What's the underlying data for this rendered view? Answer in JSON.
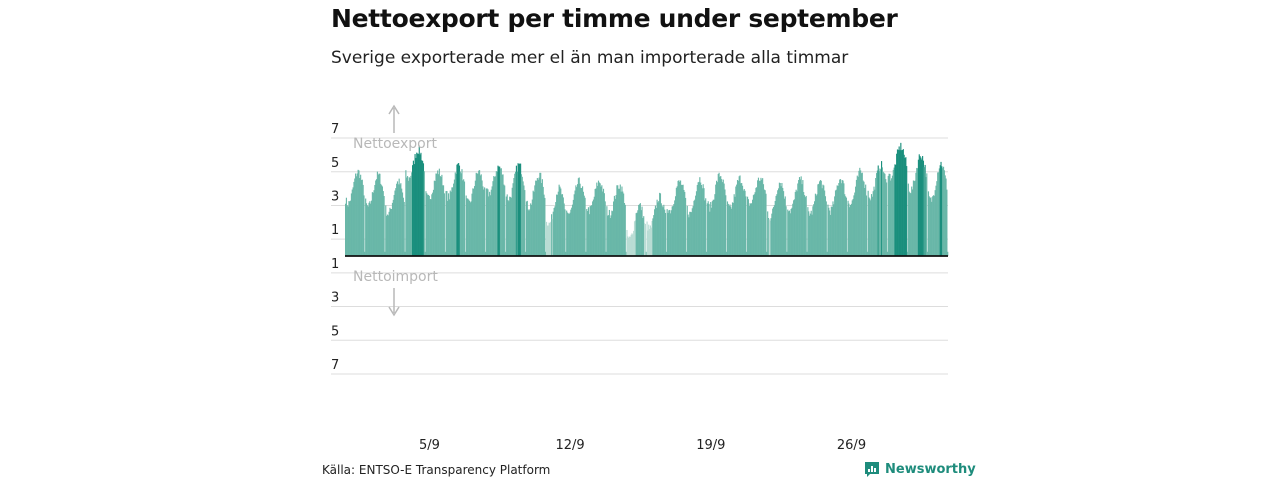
{
  "chart_data": {
    "type": "bar",
    "title": "Nettoexport per timme under september",
    "subtitle": "Sverige exporterade mer el än man importerade alla timmar",
    "xlabel": "",
    "ylabel": "",
    "ylim": [
      -7.5,
      7.5
    ],
    "y_ticks": [
      {
        "value": 7,
        "label": "7"
      },
      {
        "value": 5,
        "label": "5"
      },
      {
        "value": 3,
        "label": "3"
      },
      {
        "value": 1,
        "label": "1"
      },
      {
        "value": -1,
        "label": "1"
      },
      {
        "value": -3,
        "label": "3"
      },
      {
        "value": -5,
        "label": "5"
      },
      {
        "value": -7,
        "label": "7"
      }
    ],
    "x_ticks": [
      {
        "day": 5,
        "label": "5/9"
      },
      {
        "day": 12,
        "label": "12/9"
      },
      {
        "day": 19,
        "label": "19/9"
      },
      {
        "day": 26,
        "label": "26/9"
      }
    ],
    "annotations": {
      "export": "Nettoexport",
      "import": "Nettoimport"
    },
    "colors": {
      "normal": "#69b7a8",
      "high": "#1a8f7d",
      "low": "#b9dcd4",
      "zero_line": "#111111",
      "grid": "#dddddd",
      "arrow": "#b8b8b8"
    },
    "daily_level_peak": [
      {
        "day": 1,
        "level": 4.0,
        "peak": 5.0
      },
      {
        "day": 2,
        "level": 3.8,
        "peak": 4.8
      },
      {
        "day": 3,
        "level": 3.4,
        "peak": 4.4
      },
      {
        "day": 4,
        "level": 5.5,
        "peak": 6.3
      },
      {
        "day": 5,
        "level": 4.3,
        "peak": 5.0
      },
      {
        "day": 6,
        "level": 4.4,
        "peak": 5.4
      },
      {
        "day": 7,
        "level": 4.0,
        "peak": 5.0
      },
      {
        "day": 8,
        "level": 4.6,
        "peak": 5.3
      },
      {
        "day": 9,
        "level": 4.3,
        "peak": 5.4
      },
      {
        "day": 10,
        "level": 3.8,
        "peak": 4.8
      },
      {
        "day": 11,
        "level": 2.8,
        "peak": 4.0
      },
      {
        "day": 12,
        "level": 3.4,
        "peak": 4.4
      },
      {
        "day": 13,
        "level": 3.6,
        "peak": 4.4
      },
      {
        "day": 14,
        "level": 3.4,
        "peak": 4.2
      },
      {
        "day": 15,
        "level": 1.9,
        "peak": 3.0
      },
      {
        "day": 16,
        "level": 2.5,
        "peak": 3.5
      },
      {
        "day": 17,
        "level": 3.6,
        "peak": 4.4
      },
      {
        "day": 18,
        "level": 3.4,
        "peak": 4.6
      },
      {
        "day": 19,
        "level": 3.8,
        "peak": 4.8
      },
      {
        "day": 20,
        "level": 3.7,
        "peak": 4.6
      },
      {
        "day": 21,
        "level": 4.0,
        "peak": 4.6
      },
      {
        "day": 22,
        "level": 3.2,
        "peak": 4.4
      },
      {
        "day": 23,
        "level": 3.6,
        "peak": 4.5
      },
      {
        "day": 24,
        "level": 3.4,
        "peak": 4.4
      },
      {
        "day": 25,
        "level": 3.6,
        "peak": 4.6
      },
      {
        "day": 26,
        "level": 4.0,
        "peak": 5.0
      },
      {
        "day": 27,
        "level": 4.4,
        "peak": 5.4
      },
      {
        "day": 28,
        "level": 5.6,
        "peak": 6.5
      },
      {
        "day": 29,
        "level": 4.8,
        "peak": 6.0
      },
      {
        "day": 30,
        "level": 4.2,
        "peak": 5.5
      }
    ]
  },
  "footer": {
    "source": "Källa: ENTSO-E Transparency Platform",
    "brand": "Newsworthy"
  }
}
